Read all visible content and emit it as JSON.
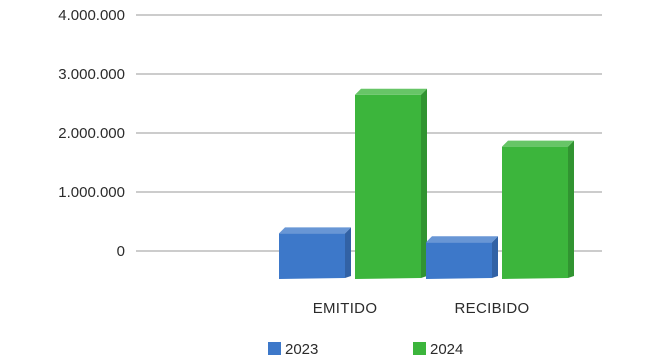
{
  "chart_data": {
    "type": "bar",
    "style": "3d",
    "categories": [
      "EMITIDO",
      "RECIBIDO"
    ],
    "series": [
      {
        "name": "2023",
        "values": [
          400000,
          250000
        ],
        "color": "#3d78c9"
      },
      {
        "name": "2024",
        "values": [
          2750000,
          1870000
        ],
        "color": "#3cb53c"
      }
    ],
    "yticks": [
      {
        "value": 0,
        "label": "0"
      },
      {
        "value": 1000000,
        "label": "1.000.000"
      },
      {
        "value": 2000000,
        "label": "2.000.000"
      },
      {
        "value": 3000000,
        "label": "3.000.000"
      },
      {
        "value": 4000000,
        "label": "4.000.000"
      }
    ],
    "ylim": [
      0,
      4000000
    ],
    "grid": true,
    "legend_position": "bottom",
    "title": "",
    "xlabel": "",
    "ylabel": ""
  }
}
